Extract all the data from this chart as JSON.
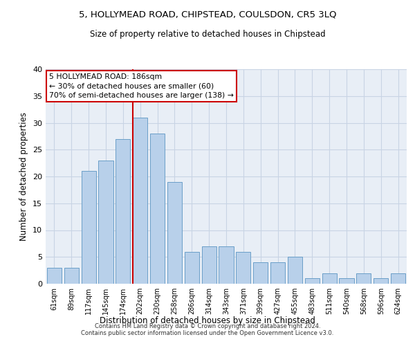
{
  "title": "5, HOLLYMEAD ROAD, CHIPSTEAD, COULSDON, CR5 3LQ",
  "subtitle": "Size of property relative to detached houses in Chipstead",
  "xlabel": "Distribution of detached houses by size in Chipstead",
  "ylabel": "Number of detached properties",
  "categories": [
    "61sqm",
    "89sqm",
    "117sqm",
    "145sqm",
    "174sqm",
    "202sqm",
    "230sqm",
    "258sqm",
    "286sqm",
    "314sqm",
    "343sqm",
    "371sqm",
    "399sqm",
    "427sqm",
    "455sqm",
    "483sqm",
    "511sqm",
    "540sqm",
    "568sqm",
    "596sqm",
    "624sqm"
  ],
  "values": [
    3,
    3,
    21,
    23,
    27,
    31,
    28,
    19,
    6,
    7,
    7,
    6,
    4,
    4,
    5,
    1,
    2,
    1,
    2,
    1,
    2
  ],
  "bar_color": "#b8d0ea",
  "bar_edge_color": "#6a9fc8",
  "grid_color": "#c8d4e4",
  "background_color": "#e8eef6",
  "vline_x_index": 4.55,
  "vline_color": "#cc0000",
  "annotation_text": "5 HOLLYMEAD ROAD: 186sqm\n← 30% of detached houses are smaller (60)\n70% of semi-detached houses are larger (138) →",
  "annotation_box_color": "white",
  "annotation_box_edge_color": "#cc0000",
  "ylim": [
    0,
    40
  ],
  "yticks": [
    0,
    5,
    10,
    15,
    20,
    25,
    30,
    35,
    40
  ],
  "footer_line1": "Contains HM Land Registry data © Crown copyright and database right 2024.",
  "footer_line2": "Contains public sector information licensed under the Open Government Licence v3.0."
}
